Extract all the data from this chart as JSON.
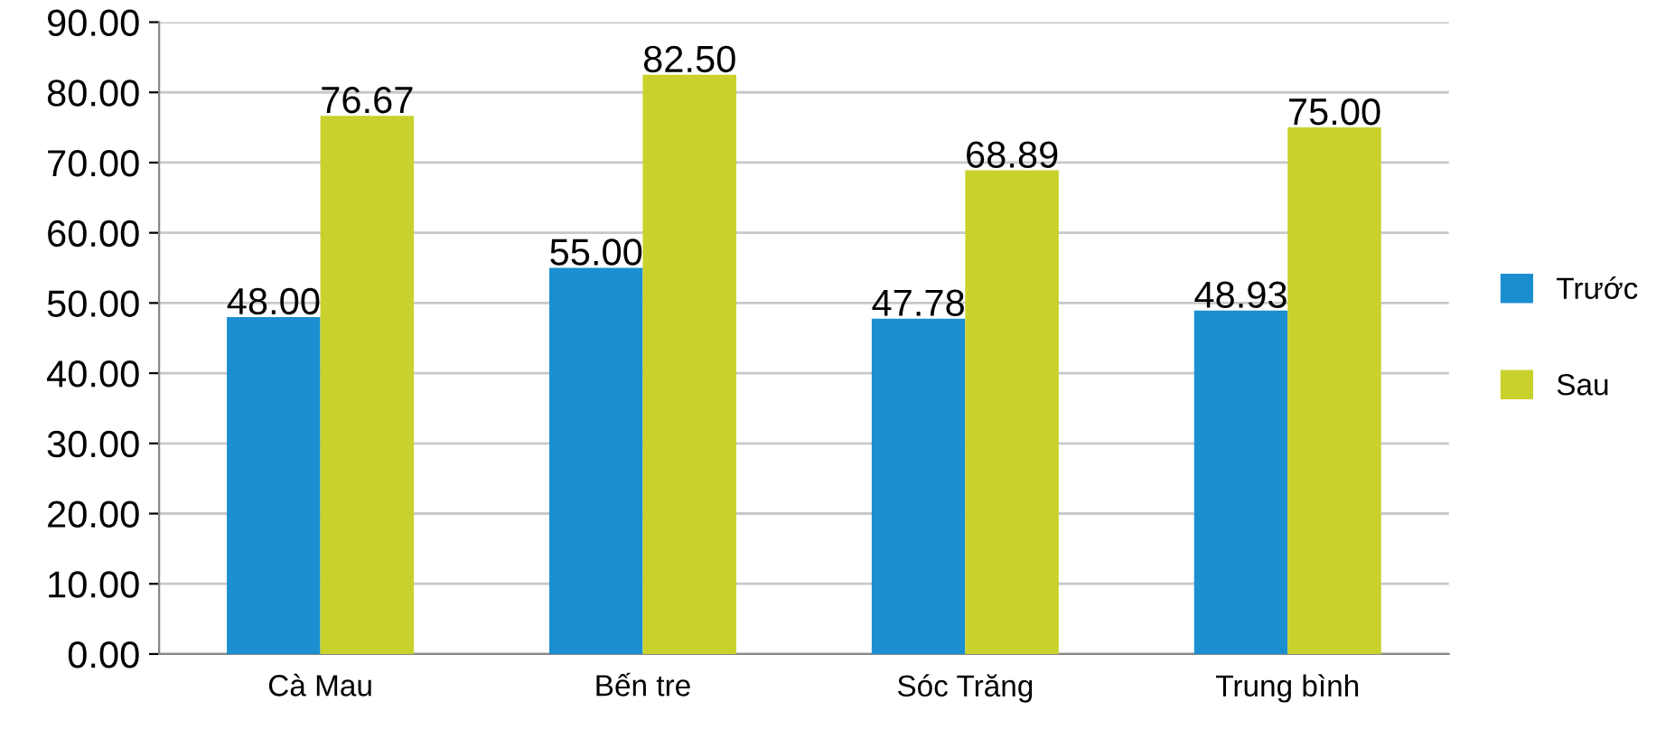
{
  "chart_data": {
    "type": "bar",
    "categories": [
      "Cà Mau",
      "Bến tre",
      "Sóc Trăng",
      "Trung bình"
    ],
    "series": [
      {
        "name": "Trước",
        "color": "#1b8fd0",
        "values": [
          48.0,
          55.0,
          47.78,
          48.93
        ],
        "value_labels": [
          "48.00",
          "55.00",
          "47.78",
          "48.93"
        ]
      },
      {
        "name": "Sau",
        "color": "#c9d22c",
        "values": [
          76.67,
          82.5,
          68.89,
          75.0
        ],
        "value_labels": [
          "76.67",
          "82.50",
          "68.89",
          "75.00"
        ]
      }
    ],
    "ylim": [
      0,
      90
    ],
    "yticks": [
      {
        "value": 0,
        "label": "0.00"
      },
      {
        "value": 10,
        "label": "10.00"
      },
      {
        "value": 20,
        "label": "20.00"
      },
      {
        "value": 30,
        "label": "30.00"
      },
      {
        "value": 40,
        "label": "40.00"
      },
      {
        "value": 50,
        "label": "50.00"
      },
      {
        "value": 60,
        "label": "60.00"
      },
      {
        "value": 70,
        "label": "70.00"
      },
      {
        "value": 80,
        "label": "80.00"
      },
      {
        "value": 90,
        "label": "90.00"
      }
    ],
    "grid": "y",
    "legend": "right"
  }
}
